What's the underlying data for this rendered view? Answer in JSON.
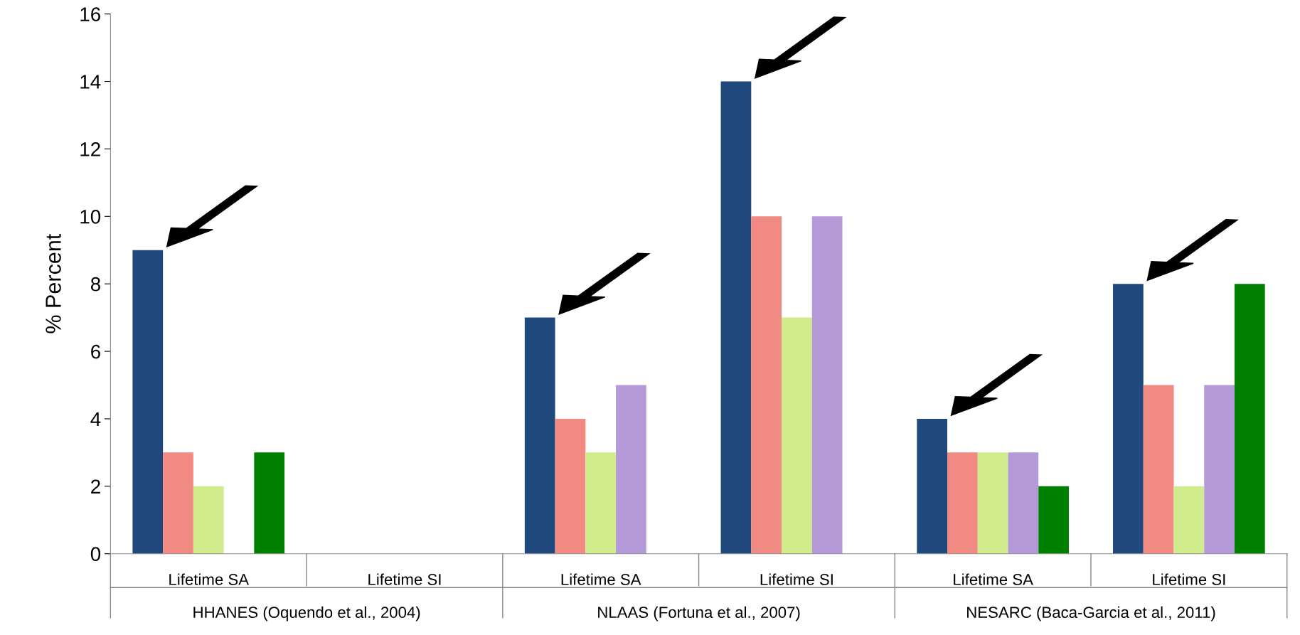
{
  "chart_data": {
    "type": "bar",
    "ylabel": "% Percent",
    "categories": [
      "Lifetime SA",
      "Lifetime SI",
      "Lifetime SA",
      "Lifetime SI",
      "Lifetime SA",
      "Lifetime SI"
    ],
    "series": [
      {
        "color": "#1f497d",
        "values": [
          9,
          null,
          7,
          14,
          4,
          8
        ]
      },
      {
        "color": "#f08a82",
        "values": [
          3,
          null,
          4,
          10,
          3,
          5
        ]
      },
      {
        "color": "#d0ec8c",
        "values": [
          2,
          null,
          3,
          7,
          3,
          2
        ]
      },
      {
        "color": "#b49ad8",
        "values": [
          null,
          null,
          5,
          10,
          3,
          5
        ]
      },
      {
        "color": "#008000",
        "values": [
          3,
          null,
          null,
          null,
          2,
          8
        ]
      }
    ],
    "annotations": [
      "HHANES (Oquendo et al., 2004)",
      "NLAAS (Fortuna et al., 2007)",
      "NESARC (Baca-Garcia et al., 2011)"
    ],
    "ylim": [
      0,
      16
    ],
    "yticks": [
      0,
      2,
      4,
      6,
      8,
      10,
      12,
      14,
      16
    ],
    "grid": false
  }
}
